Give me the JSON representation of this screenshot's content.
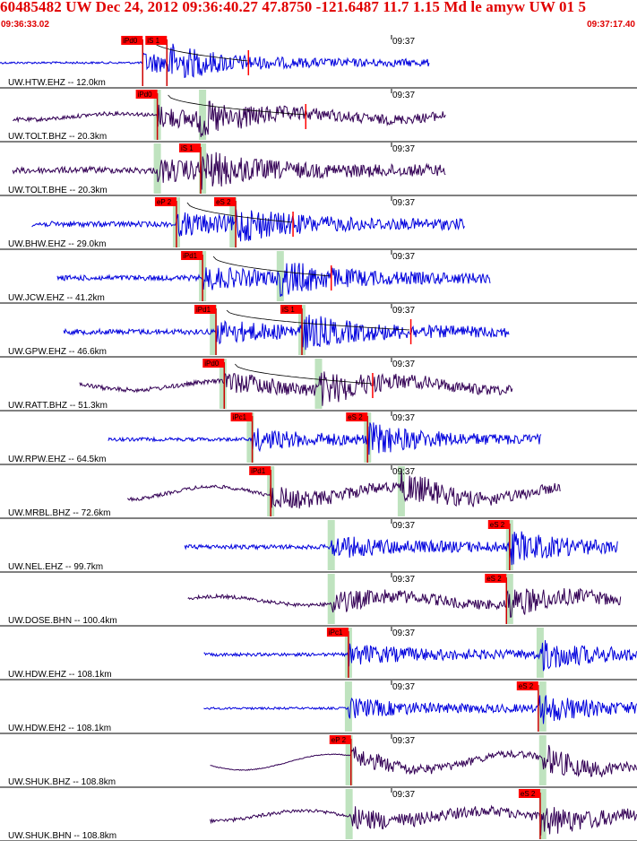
{
  "header": {
    "title": "60485482 UW Dec 24, 2012 09:36:40.27    47.8750 -121.6487 11.7 1.15 Md le amyw UW 01    5",
    "time_start": "09:36:33.02",
    "time_end": "09:37:17.40"
  },
  "colors": {
    "header_text": "#e00000",
    "trace_blue": "#0000dd",
    "trace_purple": "#330055",
    "pick_box": "#ff0000",
    "shade": "#bfe3bf"
  },
  "chart_data": {
    "type": "seismogram",
    "time_axis": {
      "start": "09:36:33.02",
      "end": "09:37:17.40",
      "tick_label": "09:37"
    },
    "traces": [
      {
        "label": "UW.HTW.EHZ -- 12.0km",
        "color": "blue",
        "picks": [
          "iPd0",
          "iS 1"
        ],
        "segment": [
          0.0,
          0.675
        ],
        "amp": 0.12,
        "wave": 0.0,
        "p": 0.224,
        "s": 0.262,
        "shade": [],
        "coda": 0.39
      },
      {
        "label": "UW.TOLT.BHZ -- 20.3km",
        "color": "purple",
        "picks": [
          "iPd0"
        ],
        "segment": [
          0.02,
          0.7
        ],
        "amp": 0.22,
        "wave": 0.22,
        "p": 0.247,
        "s": 0.312,
        "shade": [
          0.247,
          0.318
        ],
        "coda": 0.48
      },
      {
        "label": "UW.TOLT.BHE -- 20.3km",
        "color": "purple",
        "picks": [
          "iS 1"
        ],
        "segment": [
          0.02,
          0.7
        ],
        "amp": 0.35,
        "wave": 0.03,
        "p": 0.247,
        "s": 0.315,
        "shade": [
          0.247,
          0.318
        ],
        "coda": 0.0
      },
      {
        "label": "UW.BHW.EHZ -- 29.0km",
        "color": "blue",
        "picks": [
          "eP 2",
          "eS 2"
        ],
        "segment": [
          0.05,
          0.73
        ],
        "amp": 0.3,
        "wave": 0.0,
        "p": 0.277,
        "s": 0.37,
        "shade": [
          0.277,
          0.366
        ],
        "coda": 0.46
      },
      {
        "label": "UW.JCW.EHZ -- 41.2km",
        "color": "blue",
        "picks": [
          "iPd1"
        ],
        "segment": [
          0.09,
          0.77
        ],
        "amp": 0.3,
        "wave": 0.0,
        "p": 0.318,
        "s": 0.44,
        "shade": [
          0.318,
          0.44
        ],
        "coda": 0.52
      },
      {
        "label": "UW.GPW.EHZ -- 46.6km",
        "color": "blue",
        "picks": [
          "iPd1",
          "iS 1"
        ],
        "segment": [
          0.1,
          0.8
        ],
        "amp": 0.3,
        "wave": 0.0,
        "p": 0.339,
        "s": 0.474,
        "shade": [
          0.335,
          0.474
        ],
        "coda": 0.645
      },
      {
        "label": "UW.RATT.BHZ -- 51.3km",
        "color": "purple",
        "picks": [
          "iPd0"
        ],
        "segment": [
          0.125,
          0.805
        ],
        "amp": 0.25,
        "wave": 0.3,
        "p": 0.352,
        "s": 0.5,
        "shade": [
          0.35,
          0.5
        ],
        "coda": 0.585
      },
      {
        "label": "UW.RPW.EHZ -- 64.5km",
        "color": "blue",
        "picks": [
          "iPc1",
          "eS 2"
        ],
        "segment": [
          0.17,
          0.85
        ],
        "amp": 0.2,
        "wave": 0.0,
        "p": 0.396,
        "s": 0.577,
        "shade": [
          0.393,
          0.577
        ],
        "coda": 0.0
      },
      {
        "label": "UW.MRBL.BHZ -- 72.6km",
        "color": "purple",
        "picks": [
          "iPd1"
        ],
        "segment": [
          0.2,
          0.88
        ],
        "amp": 0.2,
        "wave": 0.45,
        "p": 0.425,
        "s": 0.63,
        "shade": [
          0.425,
          0.63
        ],
        "coda": 0.0
      },
      {
        "label": "UW.NEL.EHZ -- 99.7km",
        "color": "blue",
        "picks": [
          "eS 2"
        ],
        "segment": [
          0.29,
          0.97
        ],
        "amp": 0.25,
        "wave": 0.0,
        "p": 0.52,
        "s": 0.8,
        "shade": [
          0.52,
          0.8
        ],
        "coda": 0.0
      },
      {
        "label": "UW.DOSE.BHN -- 100.4km",
        "color": "purple",
        "picks": [
          "eS 2"
        ],
        "segment": [
          0.295,
          0.975
        ],
        "amp": 0.2,
        "wave": 0.3,
        "p": 0.52,
        "s": 0.795,
        "shade": [
          0.52,
          0.8
        ],
        "coda": 0.0
      },
      {
        "label": "UW.HDW.EHZ -- 108.1km",
        "color": "blue",
        "picks": [
          "iPc1"
        ],
        "segment": [
          0.32,
          1.0
        ],
        "amp": 0.18,
        "wave": 0.0,
        "p": 0.547,
        "s": 0.848,
        "shade": [
          0.547,
          0.848
        ],
        "coda": 0.0
      },
      {
        "label": "UW.HDW.EH2 -- 108.1km",
        "color": "blue",
        "picks": [
          "eS 2"
        ],
        "segment": [
          0.32,
          1.0
        ],
        "amp": 0.12,
        "wave": 0.0,
        "p": 0.547,
        "s": 0.845,
        "shade": [
          0.547,
          0.852
        ],
        "coda": 0.0
      },
      {
        "label": "UW.SHUK.BHZ -- 108.8km",
        "color": "purple",
        "picks": [
          "eP 2"
        ],
        "segment": [
          0.33,
          1.0
        ],
        "amp": 0.05,
        "wave": 0.55,
        "p": 0.551,
        "s": 0.852,
        "shade": [
          0.548,
          0.852
        ],
        "coda": 0.0
      },
      {
        "label": "UW.SHUK.BHN -- 108.8km",
        "color": "purple",
        "picks": [
          "eS 2"
        ],
        "segment": [
          0.33,
          1.0
        ],
        "amp": 0.2,
        "wave": 0.35,
        "p": 0.551,
        "s": 0.848,
        "shade": [
          0.548,
          0.852
        ],
        "coda": 0.0
      }
    ]
  }
}
